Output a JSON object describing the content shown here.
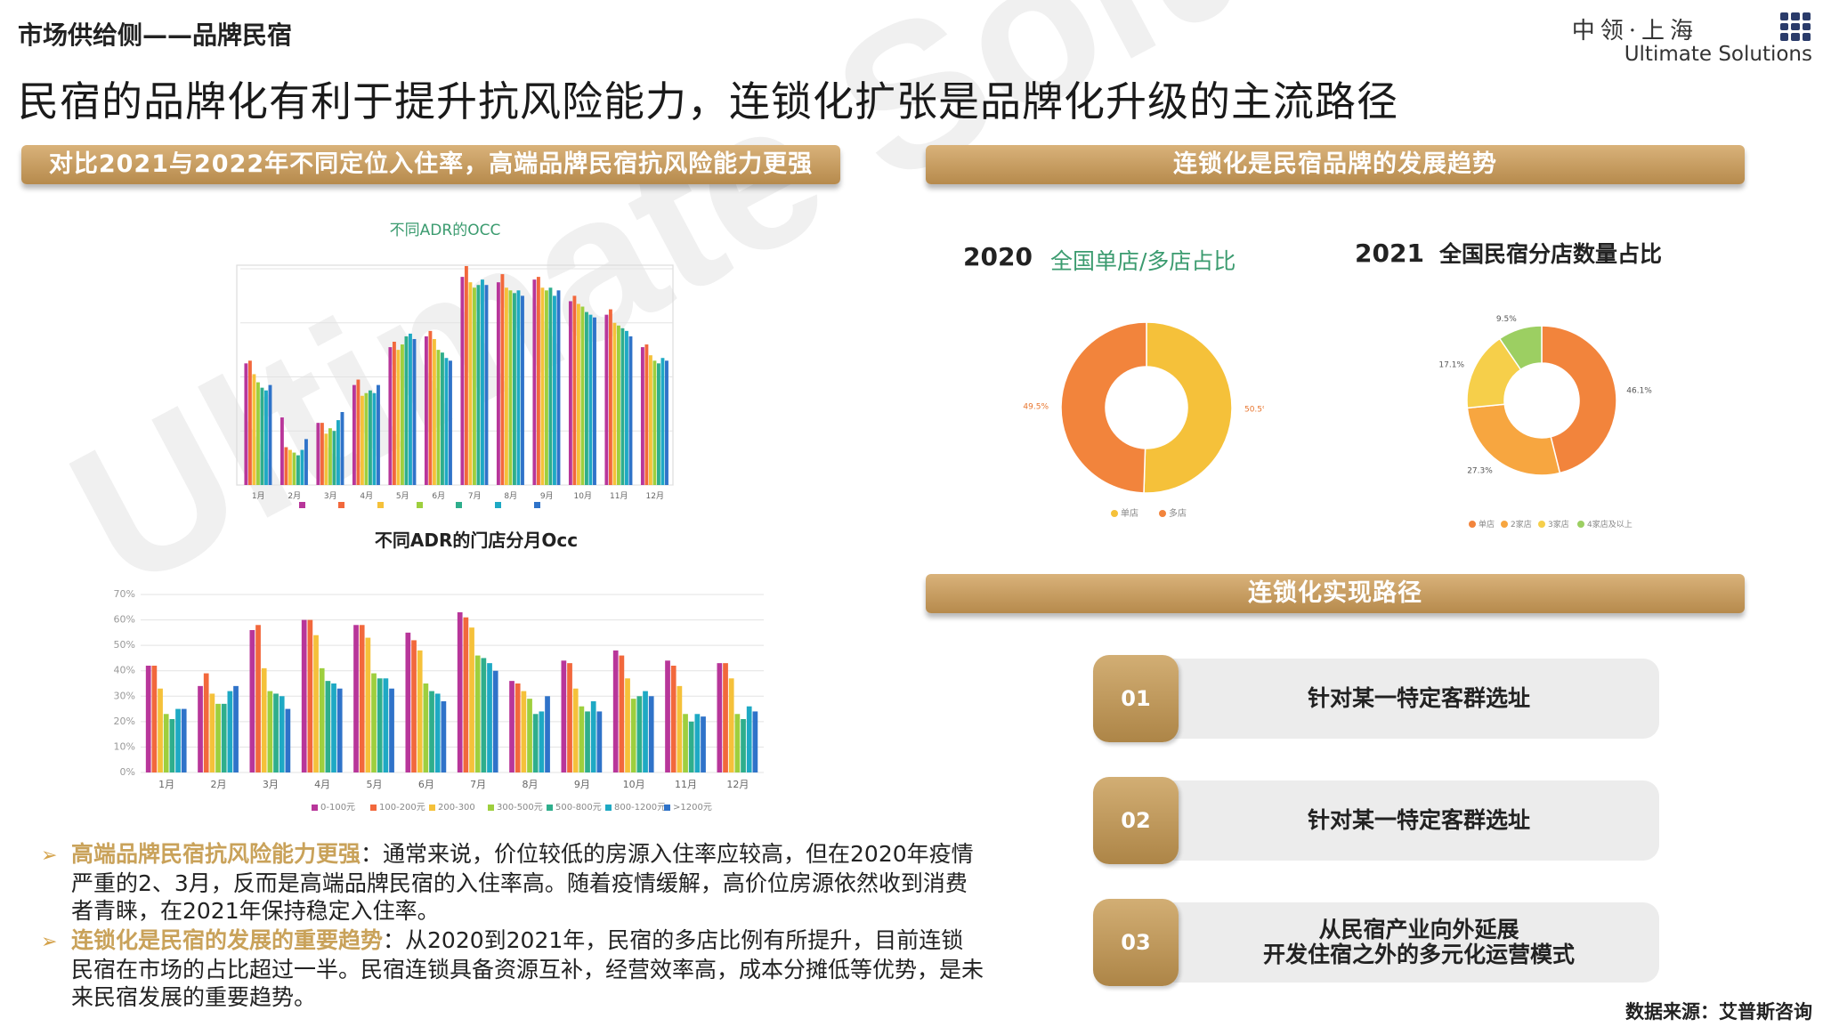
{
  "header": {
    "section": "市场供给侧——品牌民宿",
    "title": "民宿的品牌化有利于提升抗风险能力，连锁化扩张是品牌化升级的主流路径",
    "logo_cn": "中领·上海",
    "logo_en": "Ultimate Solutions",
    "watermark": "Ultimate Solutions"
  },
  "banners": {
    "left": "对比2021与2022年不同定位入住率，高端品牌民宿抗风险能力更强",
    "right_top": "连锁化是民宿品牌的发展趋势",
    "right_mid": "连锁化实现路径"
  },
  "colors": {
    "gold": "#c9a25a",
    "series": [
      "#b8369a",
      "#f2683c",
      "#f5c13a",
      "#9ecf3e",
      "#2fae8c",
      "#1ea9c4",
      "#2f73c9"
    ]
  },
  "chart_data": [
    {
      "id": "chart1",
      "type": "bar",
      "title": "不同ADR的OCC",
      "categories": [
        "1月",
        "2月",
        "3月",
        "4月",
        "5月",
        "6月",
        "7月",
        "8月",
        "9月",
        "10月",
        "11月",
        "12月"
      ],
      "series": [
        {
          "values": [
            45,
            25,
            23,
            37,
            51,
            55,
            77,
            75,
            76,
            68,
            63,
            51
          ]
        },
        {
          "values": [
            46,
            14,
            23,
            39,
            53,
            57,
            81,
            78,
            77,
            70,
            65,
            52
          ]
        },
        {
          "values": [
            41,
            13,
            19,
            33,
            50,
            54,
            75,
            73,
            73,
            67,
            60,
            48
          ]
        },
        {
          "values": [
            38,
            12,
            21,
            34,
            52,
            50,
            73,
            72,
            72,
            66,
            59,
            46
          ]
        },
        {
          "values": [
            36,
            11,
            20,
            35,
            55,
            49,
            74,
            71,
            73,
            64,
            58,
            45
          ]
        },
        {
          "values": [
            35,
            13,
            24,
            34,
            56,
            47,
            76,
            72,
            70,
            63,
            57,
            47
          ]
        },
        {
          "values": [
            37,
            17,
            27,
            37,
            54,
            46,
            74,
            70,
            72,
            62,
            55,
            46
          ]
        }
      ],
      "ylim": [
        0,
        80
      ]
    },
    {
      "id": "chart2",
      "type": "bar",
      "title": "不同ADR的门店分月Occ",
      "categories": [
        "1月",
        "2月",
        "3月",
        "4月",
        "5月",
        "6月",
        "7月",
        "8月",
        "9月",
        "10月",
        "11月",
        "12月"
      ],
      "series": [
        {
          "name": "0-100元",
          "values": [
            42,
            34,
            56,
            60,
            58,
            55,
            63,
            36,
            44,
            48,
            44,
            43
          ]
        },
        {
          "name": "100-200元",
          "values": [
            42,
            39,
            58,
            60,
            58,
            52,
            61,
            35,
            43,
            46,
            42,
            43
          ]
        },
        {
          "name": "200-300",
          "values": [
            33,
            31,
            41,
            54,
            53,
            48,
            57,
            32,
            33,
            37,
            34,
            37
          ]
        },
        {
          "name": "300-500元",
          "values": [
            23,
            27,
            32,
            41,
            39,
            35,
            46,
            29,
            26,
            29,
            23,
            23
          ]
        },
        {
          "name": "500-800元",
          "values": [
            21,
            27,
            31,
            36,
            37,
            32,
            45,
            23,
            24,
            30,
            20,
            21
          ]
        },
        {
          "name": "800-1200元",
          "values": [
            25,
            32,
            30,
            35,
            37,
            31,
            43,
            24,
            28,
            32,
            23,
            26
          ]
        },
        {
          "name": ">1200元",
          "values": [
            25,
            34,
            25,
            33,
            33,
            28,
            40,
            30,
            24,
            30,
            22,
            24
          ]
        }
      ],
      "y_ticks": [
        "70%",
        "60%",
        "50%",
        "40%",
        "30%",
        "20%",
        "10%",
        "0%"
      ],
      "ylim": [
        0,
        70
      ]
    },
    {
      "id": "donut2020",
      "type": "pie",
      "year": "2020",
      "title": "全国单店/多店占比",
      "labels": [
        "单店",
        "多店"
      ],
      "values": [
        50.5,
        49.5
      ],
      "value_labels": [
        "50.5%",
        "49.5%"
      ],
      "colors": [
        "#f5c13a",
        "#f2843c"
      ]
    },
    {
      "id": "donut2021",
      "type": "pie",
      "year": "2021",
      "title": "全国民宿分店数量占比",
      "labels": [
        "单店",
        "2家店",
        "3家店",
        "4家店及以上"
      ],
      "values": [
        46.1,
        27.3,
        17.1,
        9.5
      ],
      "value_labels": [
        "46.1%",
        "27.3%",
        "17.1%",
        "9.5%"
      ],
      "colors": [
        "#f2843c",
        "#f7a640",
        "#f6cf4a",
        "#9ccf62"
      ]
    }
  ],
  "steps": [
    {
      "num": "01",
      "lines": [
        "针对某一特定客群选址"
      ]
    },
    {
      "num": "02",
      "lines": [
        "针对某一特定客群选址"
      ]
    },
    {
      "num": "03",
      "lines": [
        "从民宿产业向外延展",
        "开发住宿之外的多元化运营模式"
      ]
    }
  ],
  "bullets": [
    {
      "arrow": "➢",
      "highlight": "高端品牌民宿抗风险能力更强",
      "text": "：通常来说，价位较低的房源入住率应较高，但在2020年疫情严重的2、3月，反而是高端品牌民宿的入住率高。随着疫情缓解，高价位房源依然收到消费者青睐，在2021年保持稳定入住率。"
    },
    {
      "arrow": "➢",
      "highlight": "连锁化是民宿的发展的重要趋势",
      "text": "：从2020到2021年，民宿的多店比例有所提升，目前连锁民宿在市场的占比超过一半。民宿连锁具备资源互补，经营效率高，成本分摊低等优势，是未来民宿发展的重要趋势。"
    }
  ],
  "source": "数据来源：艾普斯咨询"
}
